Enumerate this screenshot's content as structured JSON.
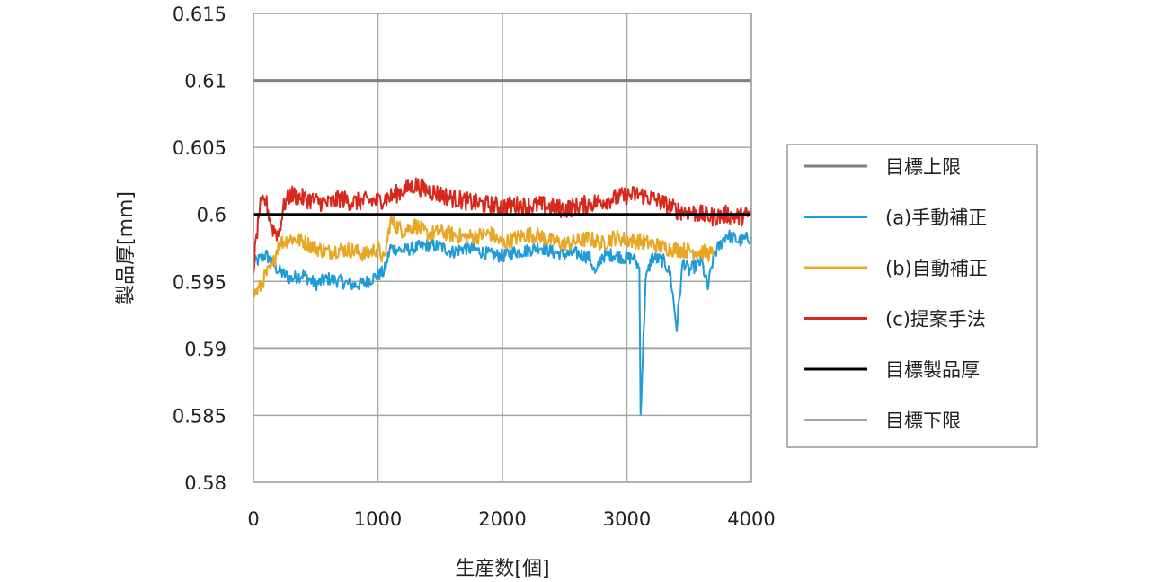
{
  "chart_data": {
    "type": "line",
    "xlabel": "生産数[個]",
    "ylabel": "製品厚[mm]",
    "xlim": [
      0,
      4000
    ],
    "ylim": [
      0.58,
      0.615
    ],
    "x_ticks": [
      "0",
      "1000",
      "2000",
      "3000",
      "4000"
    ],
    "y_ticks": [
      "0.58",
      "0.585",
      "0.59",
      "0.595",
      "0.6",
      "0.605",
      "0.61",
      "0.615"
    ],
    "grid": true,
    "legend_position": "right",
    "series": [
      {
        "name": "目標上限",
        "color": "#7f7f7f",
        "x": [
          0,
          4000
        ],
        "values": [
          0.61,
          0.61
        ]
      },
      {
        "name": "(a)手動補正",
        "color": "#1f9bd7",
        "x": [
          0,
          100,
          200,
          300,
          400,
          500,
          600,
          700,
          800,
          900,
          1000,
          1050,
          1100,
          1200,
          1300,
          1400,
          1500,
          1600,
          1700,
          1800,
          1900,
          2000,
          2100,
          2200,
          2300,
          2400,
          2500,
          2600,
          2700,
          2750,
          2800,
          2900,
          3000,
          3050,
          3100,
          3110,
          3150,
          3200,
          3300,
          3350,
          3400,
          3450,
          3500,
          3600,
          3650,
          3700,
          3800,
          3900,
          4000
        ],
        "values": [
          0.5963,
          0.597,
          0.5958,
          0.5952,
          0.5955,
          0.5948,
          0.5952,
          0.595,
          0.5947,
          0.5949,
          0.5955,
          0.5957,
          0.5975,
          0.5973,
          0.5975,
          0.5977,
          0.5976,
          0.5972,
          0.5975,
          0.5973,
          0.597,
          0.5969,
          0.5972,
          0.5973,
          0.5976,
          0.5972,
          0.597,
          0.5971,
          0.5968,
          0.5955,
          0.5969,
          0.597,
          0.5967,
          0.5968,
          0.596,
          0.585,
          0.595,
          0.5968,
          0.5965,
          0.5955,
          0.5915,
          0.5965,
          0.5958,
          0.5965,
          0.5945,
          0.597,
          0.5985,
          0.598,
          0.5983
        ]
      },
      {
        "name": "(b)自動補正",
        "color": "#e8a622",
        "x": [
          0,
          50,
          100,
          150,
          200,
          300,
          400,
          500,
          600,
          700,
          800,
          900,
          1000,
          1050,
          1100,
          1200,
          1300,
          1400,
          1500,
          1600,
          1700,
          1800,
          1900,
          2000,
          2100,
          2200,
          2300,
          2400,
          2500,
          2600,
          2700,
          2800,
          2900,
          3000,
          3100,
          3200,
          3300,
          3400,
          3500,
          3600,
          3700
        ],
        "values": [
          0.594,
          0.5945,
          0.5955,
          0.596,
          0.5978,
          0.5982,
          0.598,
          0.5975,
          0.5972,
          0.5974,
          0.5973,
          0.597,
          0.5975,
          0.5965,
          0.5995,
          0.5988,
          0.5992,
          0.5985,
          0.5987,
          0.5985,
          0.5983,
          0.5984,
          0.5986,
          0.5978,
          0.5982,
          0.5985,
          0.5984,
          0.598,
          0.5978,
          0.598,
          0.5982,
          0.5978,
          0.5983,
          0.5981,
          0.598,
          0.5978,
          0.5975,
          0.5974,
          0.5973,
          0.5972,
          0.597
        ]
      },
      {
        "name": "(c)提案手法",
        "color": "#d7281c",
        "x": [
          0,
          50,
          100,
          150,
          200,
          250,
          300,
          400,
          500,
          600,
          700,
          800,
          900,
          1000,
          1100,
          1200,
          1300,
          1400,
          1500,
          1600,
          1700,
          1800,
          1900,
          2000,
          2100,
          2200,
          2300,
          2400,
          2500,
          2600,
          2700,
          2800,
          2900,
          3000,
          3100,
          3200,
          3300,
          3400,
          3500,
          3600,
          3700,
          3800,
          3900,
          4000
        ],
        "values": [
          0.596,
          0.6005,
          0.601,
          0.599,
          0.5985,
          0.6008,
          0.6015,
          0.6012,
          0.601,
          0.6008,
          0.6012,
          0.6009,
          0.601,
          0.601,
          0.6013,
          0.6018,
          0.6022,
          0.6018,
          0.6015,
          0.6012,
          0.601,
          0.6008,
          0.6007,
          0.6006,
          0.6007,
          0.6006,
          0.6007,
          0.6005,
          0.6004,
          0.6006,
          0.6008,
          0.601,
          0.6012,
          0.6014,
          0.6015,
          0.6012,
          0.6008,
          0.6003,
          0.6002,
          0.6,
          0.5998,
          0.6,
          0.5998,
          0.6
        ]
      },
      {
        "name": "目標製品厚",
        "color": "#000000",
        "x": [
          0,
          4000
        ],
        "values": [
          0.6,
          0.6
        ]
      },
      {
        "name": "目標下限",
        "color": "#a6a6a6",
        "x": [
          0,
          4000
        ],
        "values": [
          0.59,
          0.59
        ]
      }
    ]
  }
}
